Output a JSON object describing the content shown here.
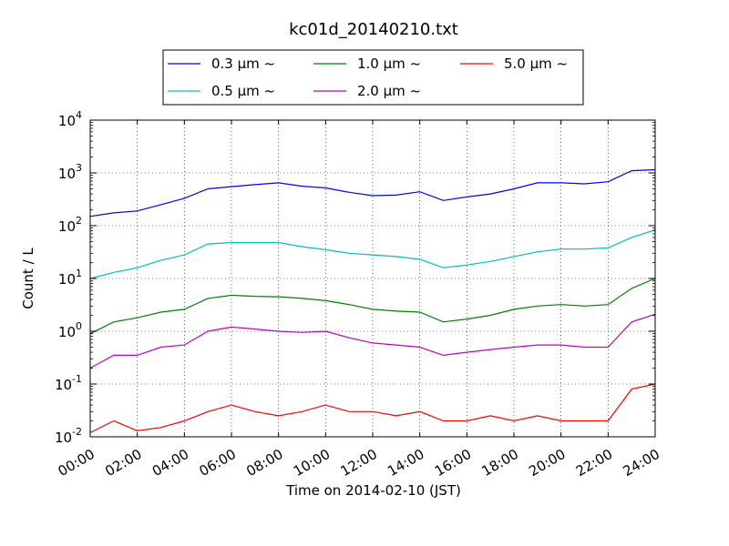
{
  "chart_data": {
    "type": "line",
    "title": "kc01d_20140210.txt",
    "xlabel": "Time on 2014-02-10 (JST)",
    "ylabel": "Count / L",
    "x_unit": "hour",
    "xlim": [
      0,
      24
    ],
    "ylim": [
      0.01,
      10000
    ],
    "yscale": "log",
    "grid": true,
    "legend_position": "top-center-outside",
    "x_tick_labels": [
      "00:00",
      "02:00",
      "04:00",
      "06:00",
      "08:00",
      "10:00",
      "12:00",
      "14:00",
      "16:00",
      "18:00",
      "20:00",
      "22:00",
      "24:00"
    ],
    "y_tick_labels": [
      {
        "base": "10",
        "exp": "-2",
        "value": 0.01
      },
      {
        "base": "10",
        "exp": "-1",
        "value": 0.1
      },
      {
        "base": "10",
        "exp": "0",
        "value": 1
      },
      {
        "base": "10",
        "exp": "1",
        "value": 10
      },
      {
        "base": "10",
        "exp": "2",
        "value": 100
      },
      {
        "base": "10",
        "exp": "3",
        "value": 1000
      },
      {
        "base": "10",
        "exp": "4",
        "value": 10000
      }
    ],
    "x": [
      0,
      1,
      2,
      3,
      4,
      5,
      6,
      7,
      8,
      9,
      10,
      11,
      12,
      13,
      14,
      15,
      16,
      17,
      18,
      19,
      20,
      21,
      22,
      23,
      24
    ],
    "series": [
      {
        "name": "0.3 μm ~",
        "color": "#0000ff",
        "values": [
          150,
          175,
          190,
          250,
          330,
          500,
          550,
          600,
          650,
          560,
          520,
          430,
          370,
          380,
          440,
          300,
          350,
          400,
          500,
          650,
          650,
          620,
          680,
          1100,
          1150
        ]
      },
      {
        "name": "0.5 μm ~",
        "color": "#00bfbf",
        "values": [
          10,
          13,
          16,
          22,
          28,
          45,
          48,
          48,
          48,
          40,
          35,
          30,
          28,
          26,
          23,
          16,
          18,
          21,
          26,
          32,
          36,
          36,
          38,
          60,
          83
        ]
      },
      {
        "name": "1.0 μm ~",
        "color": "#008000",
        "values": [
          0.9,
          1.5,
          1.8,
          2.3,
          2.6,
          4.2,
          4.8,
          4.6,
          4.5,
          4.2,
          3.8,
          3.2,
          2.6,
          2.4,
          2.3,
          1.5,
          1.7,
          2.0,
          2.6,
          3.0,
          3.2,
          3.0,
          3.2,
          6.5,
          10
        ]
      },
      {
        "name": "2.0 μm ~",
        "color": "#bf00bf",
        "values": [
          0.2,
          0.35,
          0.35,
          0.5,
          0.55,
          1.0,
          1.2,
          1.1,
          1.0,
          0.95,
          1.0,
          0.75,
          0.6,
          0.55,
          0.5,
          0.35,
          0.4,
          0.45,
          0.5,
          0.55,
          0.55,
          0.5,
          0.5,
          1.5,
          2.1
        ]
      },
      {
        "name": "5.0 μm ~",
        "color": "#ff0000",
        "values": [
          0.012,
          0.02,
          0.013,
          0.015,
          0.02,
          0.03,
          0.04,
          0.03,
          0.025,
          0.03,
          0.04,
          0.03,
          0.03,
          0.025,
          0.03,
          0.02,
          0.02,
          0.025,
          0.02,
          0.025,
          0.02,
          0.02,
          0.02,
          0.08,
          0.1
        ]
      }
    ]
  }
}
